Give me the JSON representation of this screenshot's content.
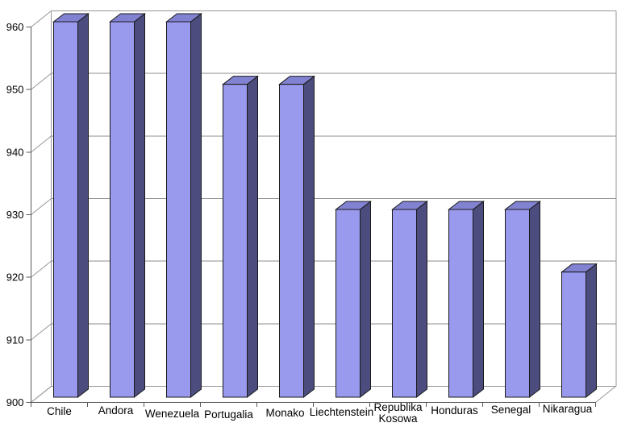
{
  "chart_data": {
    "type": "bar",
    "style": "3d-column",
    "title": "",
    "xlabel": "",
    "ylabel": "",
    "categories": [
      "Chile",
      "Andora",
      "Wenezuela",
      "Portugalia",
      "Monako",
      "Liechtenstein",
      "Republika Kosowa",
      "Honduras",
      "Senegal",
      "Nikaragua"
    ],
    "values": [
      960,
      960,
      960,
      950,
      950,
      930,
      930,
      930,
      930,
      920
    ],
    "ylim": [
      900,
      960
    ],
    "ytick_step": 10,
    "ytick_labels": [
      "900",
      "910",
      "920",
      "930",
      "940",
      "950",
      "960"
    ],
    "grid": true,
    "legend": "none",
    "colors": {
      "bar_front": "#9999EE",
      "bar_top": "#8282D2",
      "bar_side": "#4C4C7E",
      "bar_outline": "#1A1A1A",
      "gridline": "#8C8C8C",
      "frame": "#969696",
      "axis": "#5A5A5A",
      "label": "#000000",
      "background": "#FFFFFF"
    }
  }
}
